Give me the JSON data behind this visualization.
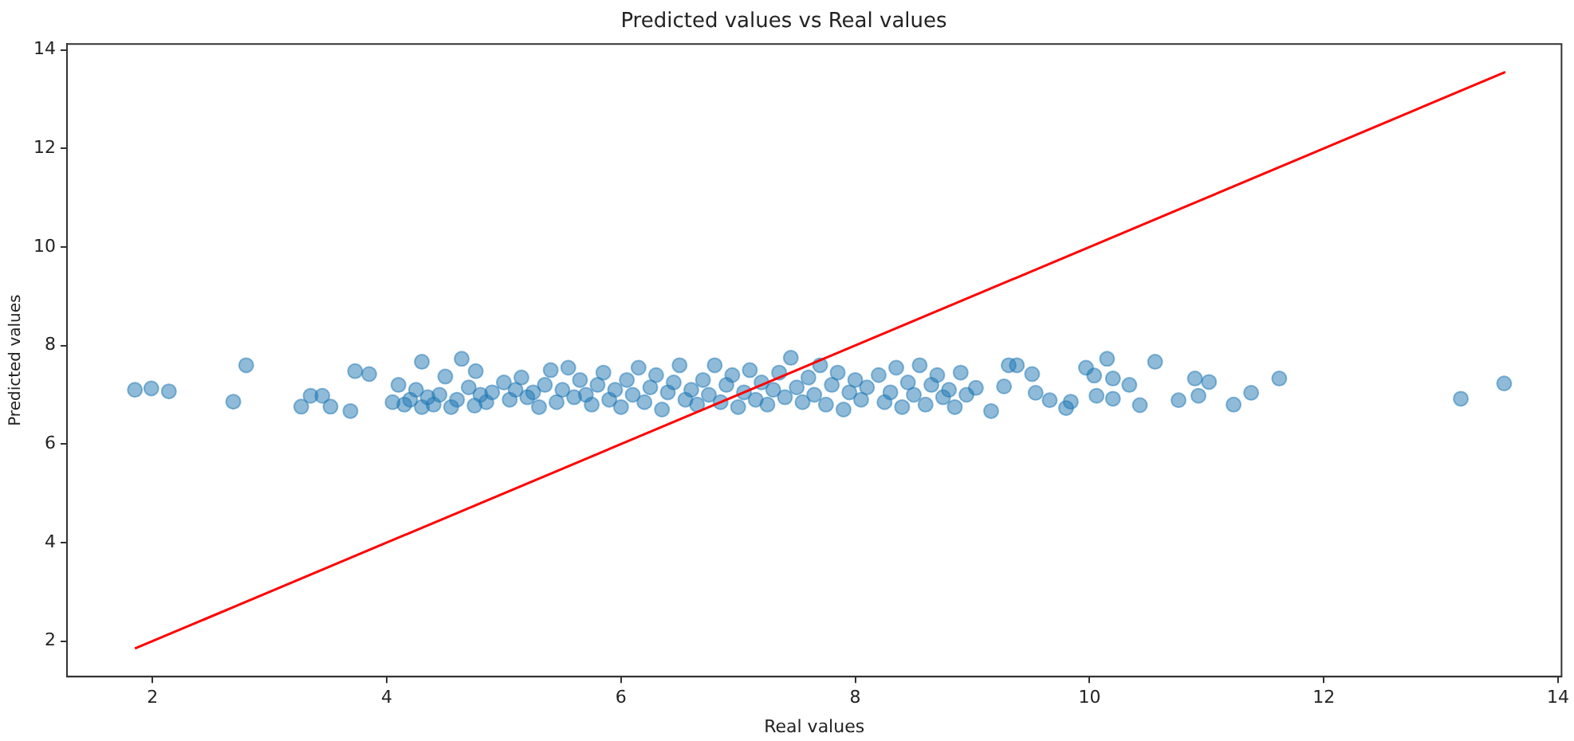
{
  "chart_data": {
    "type": "scatter",
    "title": "Predicted values vs Real values",
    "xlabel": "Real values",
    "ylabel": "Predicted values",
    "xlim": [
      1.27,
      14.03
    ],
    "ylim": [
      1.28,
      14.12
    ],
    "xticks": [
      2,
      4,
      6,
      8,
      10,
      12,
      14
    ],
    "yticks": [
      2,
      4,
      6,
      8,
      10,
      12,
      14
    ],
    "grid": false,
    "legend": false,
    "marker": "circle",
    "series": [
      {
        "type": "scatter",
        "color": "#1f77b4",
        "x": [
          1.85,
          1.99,
          2.14,
          2.8,
          2.69,
          3.27,
          3.35,
          3.45,
          3.52,
          3.69,
          3.73,
          3.85,
          4.3,
          4.64,
          4.5,
          4.76,
          4.05,
          4.1,
          4.15,
          4.2,
          4.25,
          4.3,
          4.35,
          4.4,
          4.45,
          4.55,
          4.6,
          4.7,
          4.75,
          4.8,
          4.85,
          4.9,
          5.0,
          5.05,
          5.1,
          5.15,
          5.2,
          5.25,
          5.3,
          5.35,
          5.4,
          5.45,
          5.5,
          5.55,
          5.6,
          5.65,
          5.7,
          5.75,
          5.8,
          5.85,
          5.9,
          5.95,
          6.0,
          6.05,
          6.1,
          6.15,
          6.2,
          6.25,
          6.3,
          6.35,
          6.4,
          6.45,
          6.5,
          6.55,
          6.6,
          6.65,
          6.7,
          6.75,
          6.8,
          6.85,
          6.9,
          6.95,
          7.0,
          7.05,
          7.1,
          7.15,
          7.2,
          7.25,
          7.3,
          7.35,
          7.4,
          7.45,
          7.5,
          7.55,
          7.6,
          7.65,
          7.7,
          7.75,
          7.8,
          7.85,
          7.9,
          7.95,
          8.0,
          8.05,
          8.1,
          8.2,
          8.25,
          8.3,
          8.35,
          8.4,
          8.45,
          8.5,
          8.55,
          8.6,
          8.65,
          8.7,
          8.75,
          8.8,
          8.85,
          8.9,
          8.95,
          9.03,
          9.16,
          9.27,
          9.31,
          9.38,
          9.51,
          9.54,
          9.66,
          9.8,
          9.84,
          9.97,
          10.04,
          10.06,
          10.15,
          10.2,
          10.2,
          10.34,
          10.43,
          10.56,
          10.76,
          10.9,
          10.93,
          11.02,
          11.23,
          11.38,
          11.62,
          13.17,
          13.54
        ],
        "values": [
          7.1,
          7.13,
          7.07,
          7.6,
          6.86,
          6.76,
          6.98,
          6.98,
          6.76,
          6.67,
          7.48,
          7.42,
          7.67,
          7.73,
          7.37,
          7.48,
          6.85,
          7.2,
          6.8,
          6.9,
          7.1,
          6.75,
          6.95,
          6.8,
          7.0,
          6.75,
          6.9,
          7.15,
          6.78,
          7.0,
          6.85,
          7.05,
          7.25,
          6.9,
          7.1,
          7.35,
          6.95,
          7.05,
          6.75,
          7.2,
          7.5,
          6.85,
          7.1,
          7.55,
          6.95,
          7.3,
          7.0,
          6.8,
          7.2,
          7.45,
          6.9,
          7.1,
          6.75,
          7.3,
          7.0,
          7.55,
          6.85,
          7.15,
          7.4,
          6.7,
          7.05,
          7.25,
          7.6,
          6.9,
          7.1,
          6.8,
          7.3,
          7.0,
          7.6,
          6.85,
          7.2,
          7.4,
          6.75,
          7.05,
          7.5,
          6.9,
          7.25,
          6.8,
          7.1,
          7.45,
          6.95,
          7.75,
          7.15,
          6.85,
          7.35,
          7.0,
          7.6,
          6.8,
          7.2,
          7.45,
          6.7,
          7.05,
          7.3,
          6.9,
          7.15,
          7.4,
          6.85,
          7.05,
          7.55,
          6.75,
          7.25,
          7.0,
          7.6,
          6.8,
          7.2,
          7.4,
          6.95,
          7.1,
          6.75,
          7.45,
          7.0,
          7.14,
          6.67,
          7.17,
          7.6,
          7.6,
          7.42,
          7.04,
          6.89,
          6.73,
          6.86,
          7.55,
          7.39,
          6.98,
          7.73,
          6.92,
          7.33,
          7.2,
          6.79,
          7.67,
          6.89,
          7.33,
          6.98,
          7.26,
          6.8,
          7.04,
          7.33,
          6.92,
          7.23
        ]
      },
      {
        "type": "line",
        "color": "#ff0000",
        "marker": "none",
        "x": [
          1.85,
          13.55
        ],
        "values": [
          1.85,
          13.55
        ]
      }
    ]
  }
}
